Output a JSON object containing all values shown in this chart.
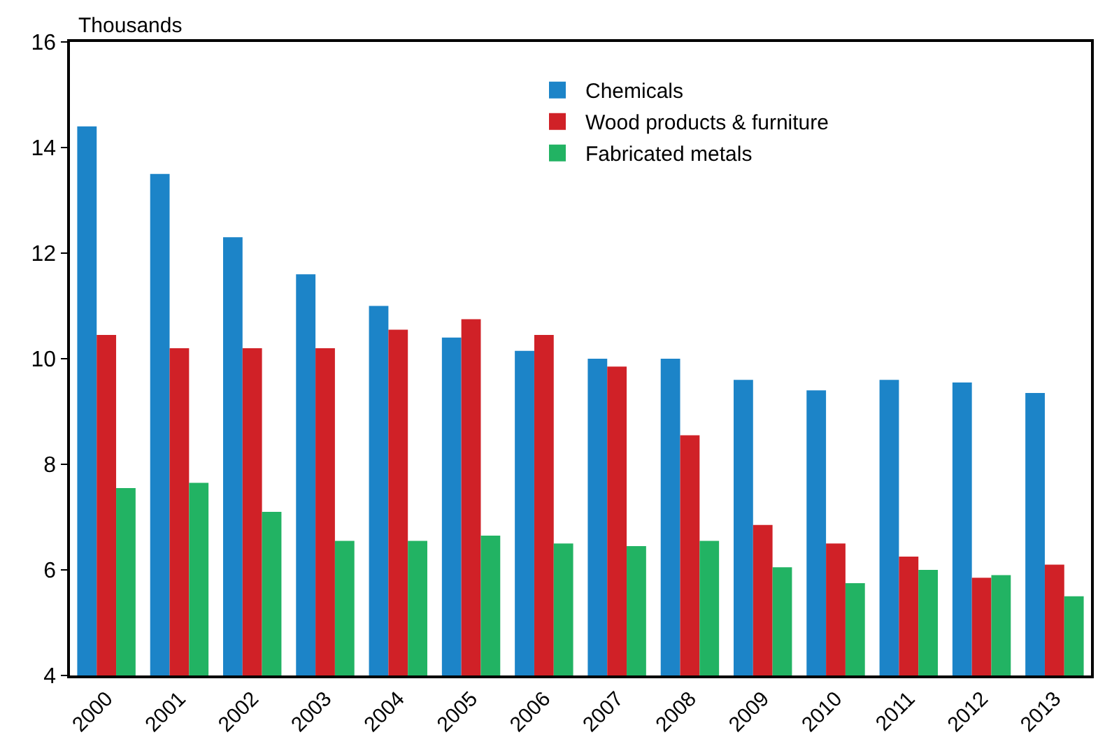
{
  "chart_data": {
    "type": "bar",
    "ylabel": "Thousands",
    "categories": [
      "2000",
      "2001",
      "2002",
      "2003",
      "2004",
      "2005",
      "2006",
      "2007",
      "2008",
      "2009",
      "2010",
      "2011",
      "2012",
      "2013"
    ],
    "series": [
      {
        "name": "Chemicals",
        "color": "#1c84c8",
        "values": [
          14.4,
          13.5,
          12.3,
          11.6,
          11.0,
          10.4,
          10.15,
          10.0,
          10.0,
          9.6,
          9.4,
          9.6,
          9.55,
          9.35
        ]
      },
      {
        "name": "Wood products & furniture",
        "color": "#d02127",
        "values": [
          10.45,
          10.2,
          10.2,
          10.2,
          10.55,
          10.75,
          10.45,
          9.85,
          8.55,
          6.85,
          6.5,
          6.25,
          5.85,
          6.1
        ]
      },
      {
        "name": "Fabricated metals",
        "color": "#22b363",
        "values": [
          7.55,
          7.65,
          7.1,
          6.55,
          6.55,
          6.65,
          6.5,
          6.45,
          6.55,
          6.05,
          5.75,
          6.0,
          5.9,
          5.5
        ]
      }
    ],
    "ylim": [
      4,
      16
    ],
    "yticks": [
      4,
      6,
      8,
      10,
      12,
      14,
      16
    ],
    "grid": false,
    "legend": "top"
  }
}
